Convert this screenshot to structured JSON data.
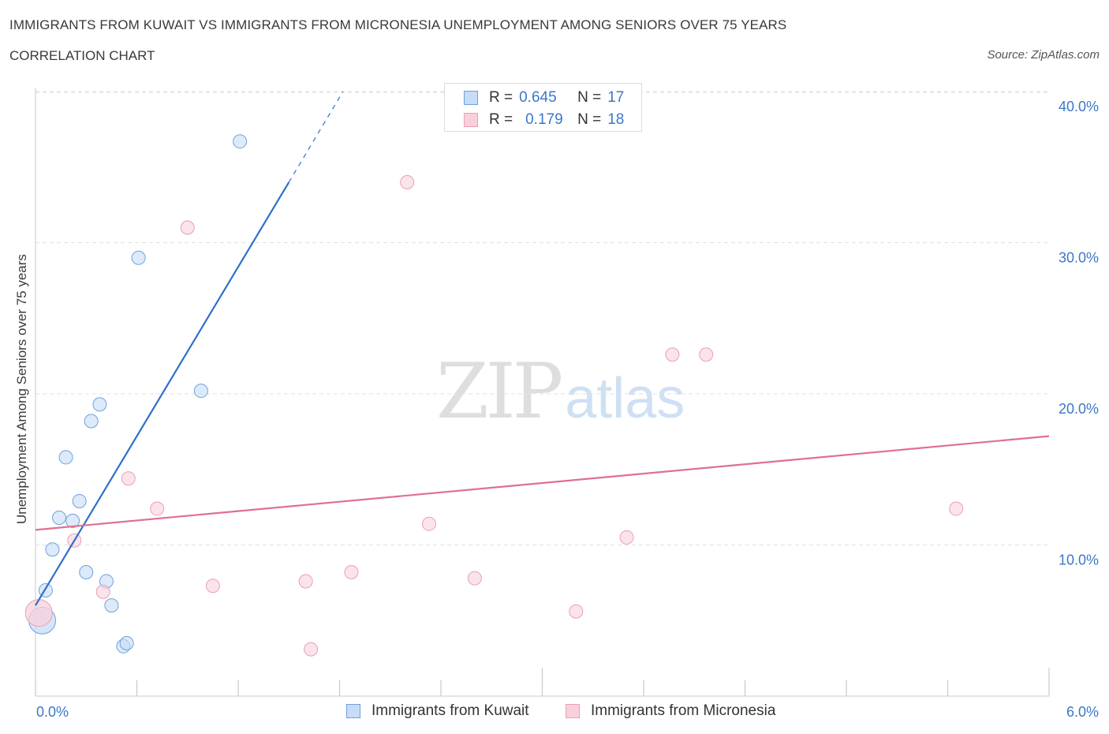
{
  "title": "IMMIGRANTS FROM KUWAIT VS IMMIGRANTS FROM MICRONESIA UNEMPLOYMENT AMONG SENIORS OVER 75 YEARS",
  "subtitle": "CORRELATION CHART",
  "source": "Source: ZipAtlas.com",
  "watermark": {
    "zip": "ZIP",
    "atlas": "atlas"
  },
  "legend_top": [
    {
      "r_label": "R =",
      "r_value": "0.645",
      "n_label": "N =",
      "n_value": "17"
    },
    {
      "r_label": "R =",
      "r_value": "0.179",
      "n_label": "N =",
      "n_value": "18"
    }
  ],
  "legend_bottom": [
    "Immigrants from Kuwait",
    "Immigrants from Micronesia"
  ],
  "chart_data": {
    "type": "scatter",
    "title": "IMMIGRANTS FROM KUWAIT VS IMMIGRANTS FROM MICRONESIA UNEMPLOYMENT AMONG SENIORS OVER 75 YEARS",
    "xlabel": "",
    "ylabel": "Unemployment Among Seniors over 75 years",
    "xlim": [
      0,
      6
    ],
    "ylim": [
      0,
      40
    ],
    "x_tick_labels": [
      "0.0%",
      "6.0%"
    ],
    "y_ticks": [
      10,
      20,
      30,
      40
    ],
    "y_tick_labels": [
      "10.0%",
      "20.0%",
      "30.0%",
      "40.0%"
    ],
    "grid": true,
    "series": [
      {
        "name": "Immigrants from Kuwait",
        "color": "#6fa0e0",
        "fill": "#c7dcf5",
        "line_color": "#2f6fcc",
        "points": [
          {
            "x": 0.04,
            "y": 5.0,
            "big": true
          },
          {
            "x": 0.06,
            "y": 7.0
          },
          {
            "x": 0.1,
            "y": 9.7
          },
          {
            "x": 0.14,
            "y": 11.8
          },
          {
            "x": 0.18,
            "y": 15.8
          },
          {
            "x": 0.22,
            "y": 11.6
          },
          {
            "x": 0.26,
            "y": 12.9
          },
          {
            "x": 0.3,
            "y": 8.2
          },
          {
            "x": 0.33,
            "y": 18.2
          },
          {
            "x": 0.38,
            "y": 19.3
          },
          {
            "x": 0.42,
            "y": 7.6
          },
          {
            "x": 0.45,
            "y": 6.0
          },
          {
            "x": 0.52,
            "y": 3.3
          },
          {
            "x": 0.54,
            "y": 3.5
          },
          {
            "x": 0.61,
            "y": 29.0
          },
          {
            "x": 0.98,
            "y": 20.2
          },
          {
            "x": 1.21,
            "y": 36.7
          }
        ],
        "trend": {
          "x0": 0.0,
          "y0": 6.0,
          "x1": 1.5,
          "y1": 34.0,
          "dash_x1": 1.82,
          "dash_y1": 40.0
        }
      },
      {
        "name": "Immigrants from Micronesia",
        "color": "#e8a0b4",
        "fill": "#f8d0dc",
        "line_color": "#e0708f",
        "points": [
          {
            "x": 0.02,
            "y": 5.5,
            "big": true
          },
          {
            "x": 0.23,
            "y": 10.3
          },
          {
            "x": 0.4,
            "y": 6.9
          },
          {
            "x": 0.55,
            "y": 14.4
          },
          {
            "x": 0.72,
            "y": 12.4
          },
          {
            "x": 0.9,
            "y": 31.0
          },
          {
            "x": 1.05,
            "y": 7.3
          },
          {
            "x": 1.6,
            "y": 7.6
          },
          {
            "x": 1.63,
            "y": 3.1
          },
          {
            "x": 1.87,
            "y": 8.2
          },
          {
            "x": 2.2,
            "y": 34.0
          },
          {
            "x": 2.33,
            "y": 11.4
          },
          {
            "x": 2.6,
            "y": 7.8
          },
          {
            "x": 3.2,
            "y": 5.6
          },
          {
            "x": 3.5,
            "y": 10.5
          },
          {
            "x": 3.77,
            "y": 22.6
          },
          {
            "x": 3.97,
            "y": 22.6
          },
          {
            "x": 5.45,
            "y": 12.4
          }
        ],
        "trend": {
          "x0": 0.0,
          "y0": 11.0,
          "x1": 6.0,
          "y1": 17.2
        }
      }
    ]
  }
}
